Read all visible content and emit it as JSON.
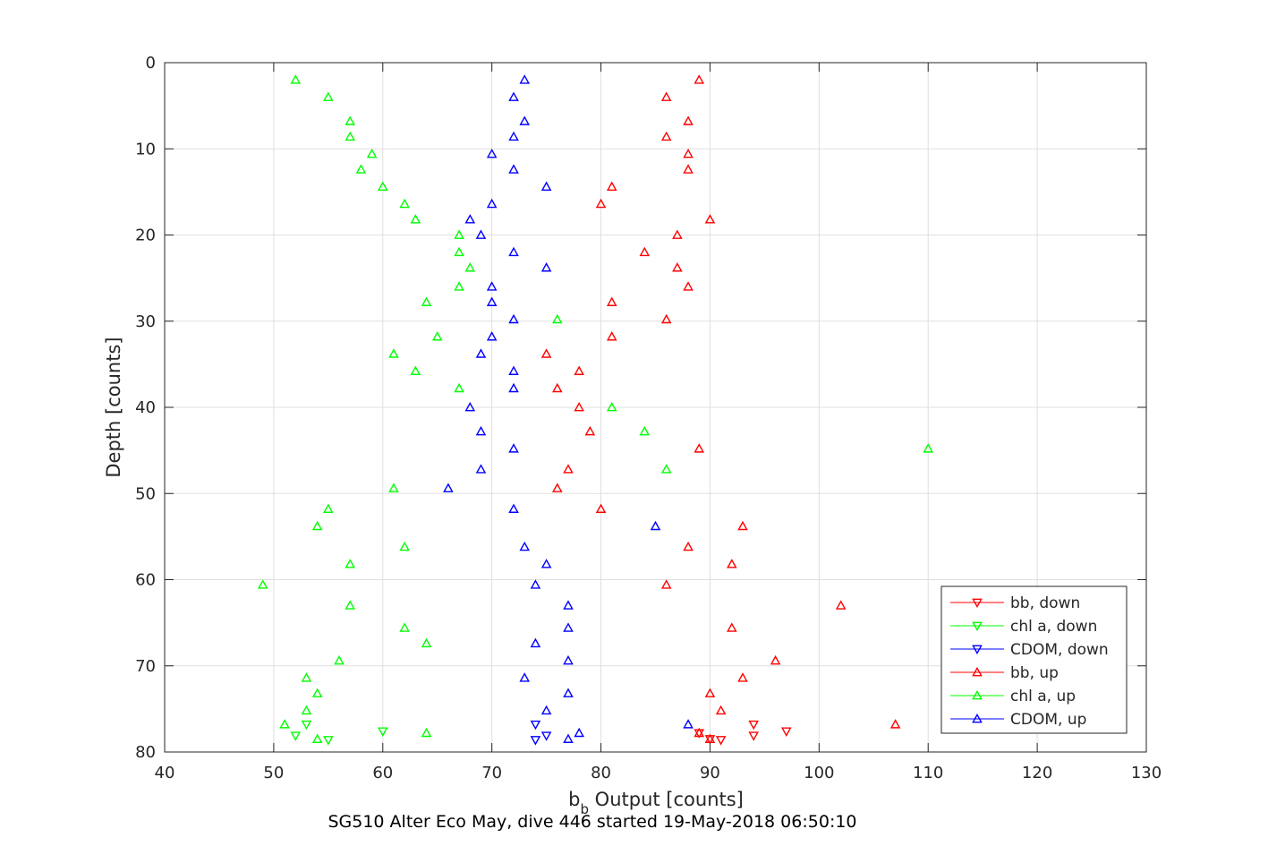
{
  "chart_data": {
    "type": "scatter",
    "xlabel_main": "b",
    "xlabel_sub": "b",
    "xlabel_rest": " Output [counts]",
    "ylabel": "Depth [counts]",
    "caption": "SG510 Alter Eco May, dive 446 started 19-May-2018 06:50:10",
    "xlim": [
      40,
      130
    ],
    "ylim": [
      0,
      80
    ],
    "y_reversed": true,
    "grid": true,
    "legend_placement": "bottom-right",
    "xticks": [
      "40",
      "50",
      "60",
      "70",
      "80",
      "90",
      "100",
      "110",
      "120",
      "130"
    ],
    "yticks": [
      "0",
      "10",
      "20",
      "30",
      "40",
      "50",
      "60",
      "70",
      "80"
    ],
    "series": [
      {
        "name": "bb, down",
        "color": "#ff0000",
        "marker": "triangle-down",
        "x": [
          94,
          97,
          94,
          89,
          91,
          90
        ],
        "y": [
          76.8,
          77.6,
          78.1,
          77.8,
          78.6,
          78.5
        ]
      },
      {
        "name": "chl a, down",
        "color": "#00ff00",
        "marker": "triangle-down",
        "x": [
          53,
          60,
          52,
          55
        ],
        "y": [
          76.8,
          77.6,
          78.1,
          78.6
        ]
      },
      {
        "name": "CDOM, down",
        "color": "#0000ff",
        "marker": "triangle-down",
        "x": [
          74,
          75,
          74
        ],
        "y": [
          76.8,
          78.1,
          78.6
        ]
      },
      {
        "name": "bb, up",
        "color": "#ff0000",
        "marker": "triangle-up",
        "x": [
          89,
          86,
          88,
          86,
          88,
          88,
          81,
          80,
          90,
          87,
          84,
          87,
          88,
          81,
          86,
          81,
          75,
          78,
          76,
          78,
          79,
          89,
          77,
          76,
          80,
          93,
          88,
          92,
          86,
          102,
          92,
          96,
          93,
          90,
          91,
          107,
          89,
          90
        ],
        "y": [
          2,
          4,
          6.8,
          8.6,
          10.6,
          12.4,
          14.4,
          16.4,
          18.2,
          20,
          22,
          23.8,
          26,
          27.8,
          29.8,
          31.8,
          33.8,
          35.8,
          37.8,
          40,
          42.8,
          44.8,
          47.2,
          49.4,
          51.8,
          53.8,
          56.2,
          58.2,
          60.6,
          63,
          65.6,
          69.4,
          71.4,
          73.2,
          75.2,
          76.8,
          77.8,
          78.5
        ]
      },
      {
        "name": "chl a, up",
        "color": "#00ff00",
        "marker": "triangle-up",
        "x": [
          52,
          55,
          57,
          57,
          59,
          58,
          60,
          62,
          63,
          67,
          67,
          68,
          67,
          64,
          76,
          65,
          61,
          63,
          67,
          81,
          84,
          110,
          86,
          61,
          55,
          54,
          62,
          57,
          49,
          57,
          62,
          64,
          56,
          53,
          54,
          53,
          51,
          64,
          54
        ],
        "y": [
          2,
          4,
          6.8,
          8.6,
          10.6,
          12.4,
          14.4,
          16.4,
          18.2,
          20,
          22,
          23.8,
          26,
          27.8,
          29.8,
          31.8,
          33.8,
          35.8,
          37.8,
          40,
          42.8,
          44.8,
          47.2,
          49.4,
          51.8,
          53.8,
          56.2,
          58.2,
          60.6,
          63,
          65.6,
          67.4,
          69.4,
          71.4,
          73.2,
          75.2,
          76.8,
          77.8,
          78.5
        ]
      },
      {
        "name": "CDOM, up",
        "color": "#0000ff",
        "marker": "triangle-up",
        "x": [
          73,
          72,
          73,
          72,
          70,
          72,
          75,
          70,
          68,
          69,
          72,
          75,
          70,
          70,
          72,
          70,
          69,
          72,
          72,
          68,
          69,
          72,
          69,
          66,
          72,
          85,
          73,
          75,
          74,
          77,
          77,
          74,
          77,
          73,
          77,
          75,
          88,
          78,
          77
        ],
        "y": [
          2,
          4,
          6.8,
          8.6,
          10.6,
          12.4,
          14.4,
          16.4,
          18.2,
          20,
          22,
          23.8,
          26,
          27.8,
          29.8,
          31.8,
          33.8,
          35.8,
          37.8,
          40,
          42.8,
          44.8,
          47.2,
          49.4,
          51.8,
          53.8,
          56.2,
          58.2,
          60.6,
          63,
          65.6,
          67.4,
          69.4,
          71.4,
          73.2,
          75.2,
          76.8,
          77.8,
          78.5
        ]
      }
    ]
  }
}
